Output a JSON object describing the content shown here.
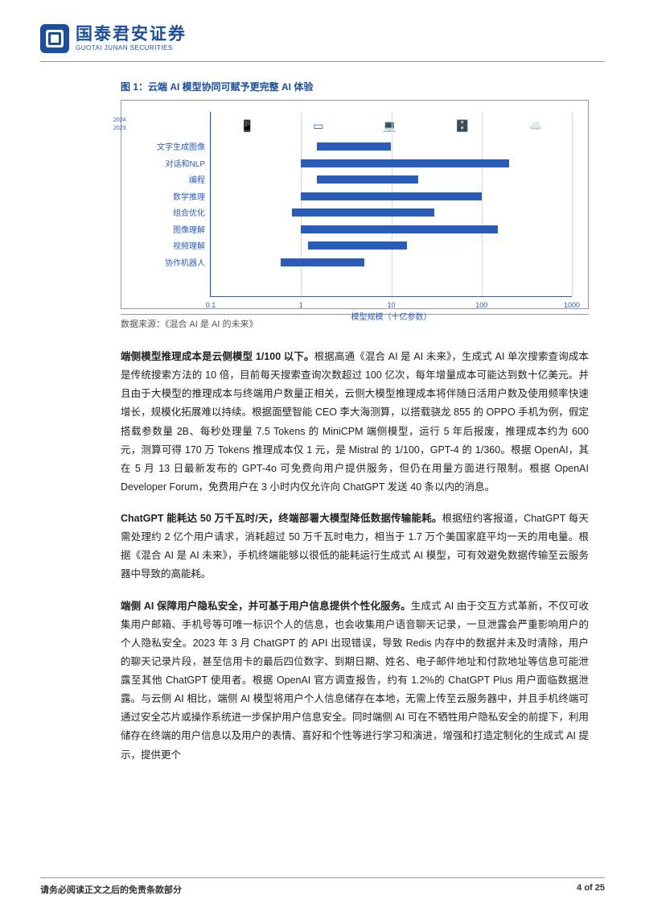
{
  "header": {
    "logo_cn": "国泰君安证券",
    "logo_en": "GUOTAI JUNAN SECURITIES"
  },
  "figure": {
    "caption": "图 1：云端 AI 模型协同可赋予更完整 AI 体验",
    "source": "数据来源：《混合 AI 是 AI 的未来》",
    "chart": {
      "type": "horizontal-range-bar-log",
      "categories": [
        "文字生成图像",
        "对话和NLP",
        "编程",
        "数学推理",
        "组合优化",
        "图像理解",
        "视频理解",
        "协作机器人"
      ],
      "year_labels": [
        "2024",
        "2023"
      ],
      "bars": [
        {
          "x0": 1.5,
          "x1": 10
        },
        {
          "x0": 1,
          "x1": 200
        },
        {
          "x0": 1.5,
          "x1": 20
        },
        {
          "x0": 1,
          "x1": 100
        },
        {
          "x0": 0.8,
          "x1": 30
        },
        {
          "x0": 1,
          "x1": 150
        },
        {
          "x0": 1.2,
          "x1": 15
        },
        {
          "x0": 0.6,
          "x1": 5
        }
      ],
      "xticks": [
        0.1,
        1,
        10,
        100,
        1000
      ],
      "xtick_labels": [
        "0.1",
        "1",
        "10",
        "100",
        "1000"
      ],
      "xlabel": "模型规模（十亿参数）",
      "bar_color": "#2a5db8",
      "grid_color": "#d0d8e8",
      "axis_color": "#2a5db8",
      "label_fontsize": 10,
      "label_color": "#2a5db8",
      "icons": [
        "phone",
        "tablet",
        "laptop",
        "server",
        "cloud"
      ]
    }
  },
  "paragraphs": {
    "p1_bold": "端侧模型推理成本是云侧模型 1/100 以下。",
    "p1": "根据高通《混合 AI 是 AI 未来》，生成式 AI 单次搜索查询成本是传统搜索方法的 10 倍，目前每天搜索查询次数超过 100 亿次，每年增量成本可能达到数十亿美元。并且由于大模型的推理成本与终端用户数量正相关，云侧大模型推理成本将伴随日活用户数及使用频率快速增长，规模化拓展难以持续。根据面壁智能 CEO 李大海测算，以搭载骁龙 855 的 OPPO 手机为例，假定搭载参数量 2B、每秒处理量 7.5 Tokens 的 MiniCPM 端侧模型，运行 5 年后报废，推理成本约为 600 元，测算可得 170 万 Tokens 推理成本仅 1 元，是 Mistral 的 1/100，GPT-4 的 1/360。根据 OpenAI，其在 5 月 13 日最新发布的 GPT-4o 可免费向用户提供服务，但仍在用量方面进行限制。根据 OpenAI Developer Forum，免费用户在 3 小时内仅允许向 ChatGPT 发送 40 条以内的消息。",
    "p2_bold": "ChatGPT 能耗达 50 万千瓦时/天，终端部署大模型降低数据传输能耗。",
    "p2": "根据纽约客报道，ChatGPT 每天需处理约 2 亿个用户请求，消耗超过 50 万千瓦时电力，相当于 1.7 万个美国家庭平均一天的用电量。根据《混合 AI 是 AI 未来》，手机终端能够以很低的能耗运行生成式 AI 模型，可有效避免数据传输至云服务器中导致的高能耗。",
    "p3_bold": "端侧 AI 保障用户隐私安全，并可基于用户信息提供个性化服务。",
    "p3": "生成式 AI 由于交互方式革新，不仅可收集用户邮箱、手机号等可唯一标识个人的信息，也会收集用户语音聊天记录，一旦泄露会严重影响用户的个人隐私安全。2023 年 3 月 ChatGPT 的 API 出现错误，导致 Redis 内存中的数据并未及时清除，用户的聊天记录片段，甚至信用卡的最后四位数字、到期日期、姓名、电子邮件地址和付款地址等信息可能泄露至其他 ChatGPT 使用者。根据 OpenAI 官方调查报告，约有 1.2%的 ChatGPT Plus 用户面临数据泄露。与云侧 AI 相比，端侧 AI 模型将用户个人信息储存在本地，无需上传至云服务器中，并且手机终端可通过安全芯片或操作系统进一步保护用户信息安全。同时端侧 AI 可在不牺牲用户隐私安全的前提下，利用储存在终端的用户信息以及用户的表情、喜好和个性等进行学习和演进，增强和打造定制化的生成式 AI 提示，提供更个"
  },
  "footer": {
    "disclaimer": "请务必阅读正文之后的免责条款部分",
    "page": "4 of 25"
  }
}
